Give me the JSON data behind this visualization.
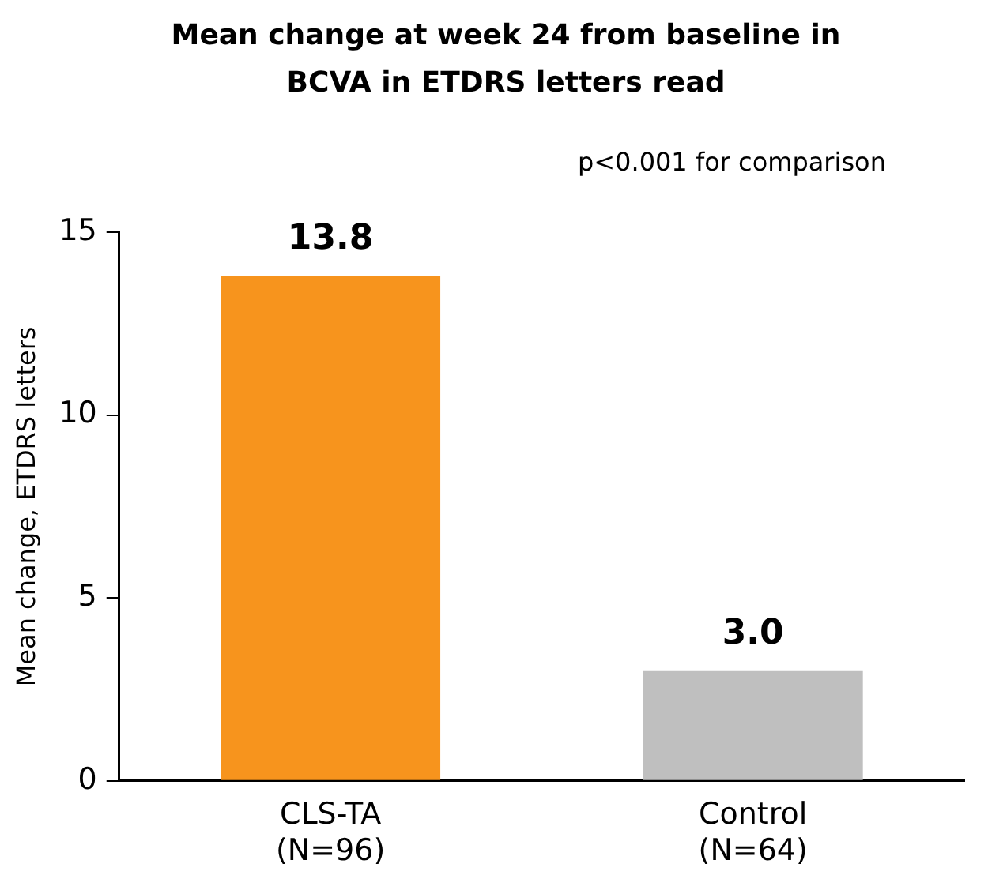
{
  "chart_data": {
    "type": "bar",
    "title": "Mean change at week 24 from baseline in BCVA in ETDRS letters read",
    "ylabel": "Mean change, ETDRS letters",
    "annotations": [
      "p<0.001 for comparison"
    ],
    "categories": [
      "CLS-TA\n(N=96)",
      "Control\n(N=64)"
    ],
    "values": [
      13.8,
      3.0
    ],
    "colors": [
      "#f7941d",
      "#bfbfbf"
    ],
    "value_labels": [
      "13.8",
      "3.0"
    ],
    "ylim": [
      0,
      15
    ],
    "yticks": [
      0,
      5,
      10,
      15
    ],
    "grid": false,
    "legend": false
  }
}
